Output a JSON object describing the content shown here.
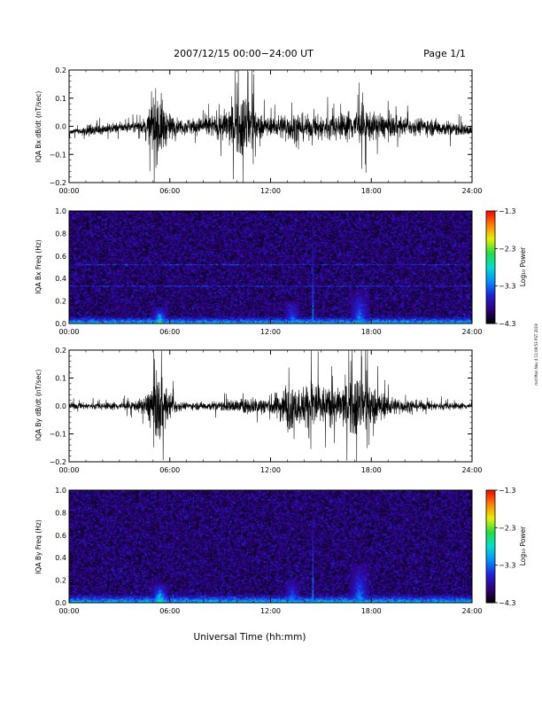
{
  "header": {
    "title": "2007/12/15  00:00−24:00 UT",
    "page": "Page 1/1"
  },
  "x_axis_title": "Universal Time (hh:mm)",
  "side_stamp": "mdl Mon Nov 4 11:09:53 PST 2019",
  "colorbar": {
    "label": "Log₁₀ Power",
    "ticks": [
      "−1.3",
      "−2.3",
      "−3.3",
      "−4.3"
    ],
    "tick_values": [
      -1.3,
      -2.3,
      -3.3,
      -4.3
    ],
    "range": [
      -4.3,
      -1.3
    ],
    "colors": [
      "#000000",
      "#30007a",
      "#2020d8",
      "#0090ff",
      "#00e0d0",
      "#20e040",
      "#e8f000",
      "#ff8000",
      "#ff0000"
    ]
  },
  "chart_data": [
    {
      "type": "line",
      "title": "",
      "ylabel": "IQA Bx dB/dt (nT/sec)",
      "xlabel": "",
      "x_ticks": [
        "00:00",
        "06:00",
        "12:00",
        "18:00",
        "24:00"
      ],
      "xlim": [
        0,
        24
      ],
      "ylim": [
        -0.2,
        0.2
      ],
      "y_ticks": [
        "0.2",
        "0.1",
        "0.0",
        "−0.1",
        "−0.2"
      ],
      "y_tick_values": [
        0.2,
        0.1,
        0.0,
        -0.1,
        -0.2
      ],
      "series": [
        {
          "x": [
            0,
            1,
            2,
            3,
            4,
            4.6,
            5.1,
            5.4,
            5.8,
            6.5,
            7,
            8,
            9,
            9.6,
            10.3,
            10.7,
            11.2,
            12,
            12.8,
            13.5,
            14.5,
            15,
            16,
            17,
            17.6,
            18,
            19,
            20,
            21,
            22,
            23,
            24
          ],
          "offset": [
            -0.02,
            -0.015,
            -0.01,
            -0.005,
            0.0,
            0.0,
            0.005,
            0.0,
            -0.005,
            0.0,
            0.0,
            0.0,
            0.0,
            0.0,
            0.0,
            0.0,
            0.0,
            0.0,
            0.0,
            -0.005,
            -0.005,
            -0.005,
            0.0,
            0.005,
            0.0,
            0.0,
            0.0,
            0.0,
            0.0,
            -0.005,
            -0.01,
            -0.015
          ],
          "amplitude": [
            0.015,
            0.03,
            0.03,
            0.03,
            0.03,
            0.05,
            0.2,
            0.2,
            0.1,
            0.04,
            0.05,
            0.05,
            0.08,
            0.12,
            0.2,
            0.2,
            0.08,
            0.05,
            0.08,
            0.09,
            0.06,
            0.08,
            0.07,
            0.1,
            0.12,
            0.08,
            0.07,
            0.05,
            0.05,
            0.05,
            0.04,
            0.03
          ]
        }
      ]
    },
    {
      "type": "heatmap",
      "title": "",
      "ylabel": "IQA Bx Freq (Hz)",
      "xlabel": "",
      "x_ticks": [
        "00:00",
        "06:00",
        "12:00",
        "18:00",
        "24:00"
      ],
      "xlim": [
        0,
        24
      ],
      "ylim": [
        0.0,
        1.0
      ],
      "y_ticks": [
        "1.0",
        "0.8",
        "0.6",
        "0.4",
        "0.2",
        "0.0"
      ],
      "y_tick_values": [
        1.0,
        0.8,
        0.6,
        0.4,
        0.2,
        0.0
      ],
      "background_log_power": -3.95,
      "low_freq_band": {
        "max_hz": 0.06,
        "log_power": -2.9
      },
      "harmonic_lines_hz": [
        0.33,
        0.52
      ],
      "events": [
        {
          "t": 5.4,
          "width_h": 0.5,
          "max_hz": 0.15,
          "log_power": -2.4
        },
        {
          "t": 14.5,
          "width_h": 0.05,
          "max_hz": 0.85,
          "log_power": -2.6
        },
        {
          "t": 13.3,
          "width_h": 0.5,
          "max_hz": 0.2,
          "log_power": -3.0
        },
        {
          "t": 17.3,
          "width_h": 0.6,
          "max_hz": 0.3,
          "log_power": -3.0
        }
      ]
    },
    {
      "type": "line",
      "title": "",
      "ylabel": "IQA By dB/dt (nT/sec)",
      "xlabel": "",
      "x_ticks": [
        "00:00",
        "06:00",
        "12:00",
        "18:00",
        "24:00"
      ],
      "xlim": [
        0,
        24
      ],
      "ylim": [
        -0.2,
        0.2
      ],
      "y_ticks": [
        "0.2",
        "0.1",
        "0.0",
        "−0.1",
        "−0.2"
      ],
      "y_tick_values": [
        0.2,
        0.1,
        0.0,
        -0.1,
        -0.2
      ],
      "series": [
        {
          "x": [
            0,
            1,
            2,
            3,
            4,
            4.6,
            5.1,
            5.4,
            5.8,
            6.5,
            7,
            8,
            9,
            10,
            11,
            12,
            12.6,
            13,
            13.5,
            14,
            14.5,
            15,
            16,
            16.5,
            17,
            17.5,
            18,
            19,
            20,
            21,
            22,
            23,
            24
          ],
          "offset": [
            0.0,
            0.0,
            0.0,
            0.0,
            0.0,
            0.0,
            0.0,
            -0.01,
            0.0,
            0.0,
            0.0,
            0.0,
            0.0,
            0.0,
            0.0,
            0.0,
            0.0,
            0.0,
            0.0,
            0.0,
            0.0,
            0.0,
            0.0,
            0.0,
            0.0,
            0.0,
            0.0,
            0.0,
            0.0,
            0.0,
            0.0,
            0.0,
            0.0
          ],
          "amplitude": [
            0.02,
            0.02,
            0.02,
            0.025,
            0.03,
            0.06,
            0.2,
            0.2,
            0.1,
            0.03,
            0.02,
            0.025,
            0.03,
            0.04,
            0.05,
            0.06,
            0.09,
            0.15,
            0.1,
            0.12,
            0.2,
            0.12,
            0.1,
            0.14,
            0.2,
            0.18,
            0.12,
            0.06,
            0.04,
            0.03,
            0.025,
            0.02,
            0.02
          ]
        }
      ]
    },
    {
      "type": "heatmap",
      "title": "",
      "ylabel": "IQA By Freq (Hz)",
      "xlabel": "",
      "x_ticks": [
        "00:00",
        "06:00",
        "12:00",
        "18:00",
        "24:00"
      ],
      "xlim": [
        0,
        24
      ],
      "ylim": [
        0.0,
        1.0
      ],
      "y_ticks": [
        "1.0",
        "0.8",
        "0.6",
        "0.4",
        "0.2",
        "0.0"
      ],
      "y_tick_values": [
        1.0,
        0.8,
        0.6,
        0.4,
        0.2,
        0.0
      ],
      "background_log_power": -3.95,
      "low_freq_band": {
        "max_hz": 0.07,
        "log_power": -2.9
      },
      "harmonic_lines_hz": [],
      "events": [
        {
          "t": 5.4,
          "width_h": 0.5,
          "max_hz": 0.18,
          "log_power": -2.4
        },
        {
          "t": 14.5,
          "width_h": 0.05,
          "max_hz": 0.86,
          "log_power": -2.6
        },
        {
          "t": 13.3,
          "width_h": 0.5,
          "max_hz": 0.2,
          "log_power": -3.0
        },
        {
          "t": 17.3,
          "width_h": 0.6,
          "max_hz": 0.35,
          "log_power": -3.0
        }
      ]
    }
  ]
}
